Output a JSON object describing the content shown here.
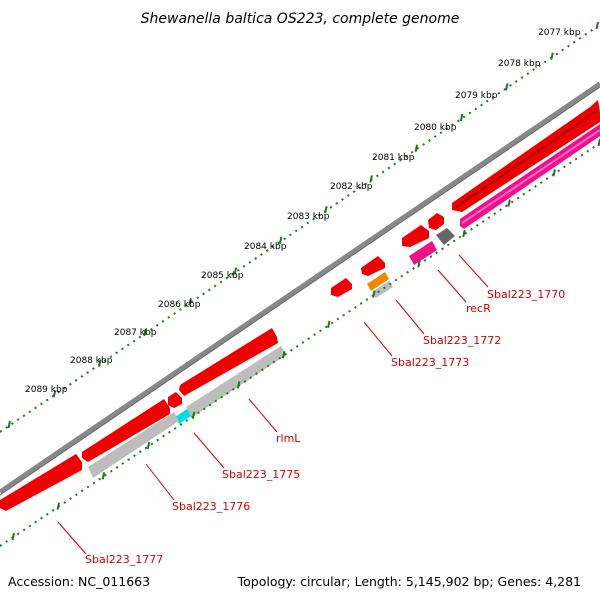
{
  "title": "Shewanella baltica OS223, complete genome",
  "accession_text": "Accession: NC_011663",
  "topology_text": "Topology: circular; Length: 5,145,902 bp; Genes: 4,281",
  "ticks": [
    "2077 kbp",
    "2078 kbp",
    "2079 kbp",
    "2080 kbp",
    "2081 kbp",
    "2082 kbp",
    "2083 kbp",
    "2084 kbp",
    "2085 kbp",
    "2086 kbp",
    "2087 kbp",
    "2088 kbp",
    "2089 kbp"
  ],
  "gene_labels": [
    "Sbal223_1770",
    "recR",
    "Sbal223_1772",
    "Sbal223_1773",
    "rlmL",
    "Sbal223_1775",
    "Sbal223_1776",
    "Sbal223_1777"
  ],
  "colors": {
    "backbone": "#7a7a7a",
    "cds": "#ee0000",
    "cds_shade": "#a00000",
    "pink": "#ee1188",
    "gray_feature": "#bdbdbd",
    "dark_gray": "#666666",
    "orange": "#ee8800",
    "cyan": "#00dddd",
    "scale_green": "#1a7a1a",
    "label_red": "#d40000"
  }
}
